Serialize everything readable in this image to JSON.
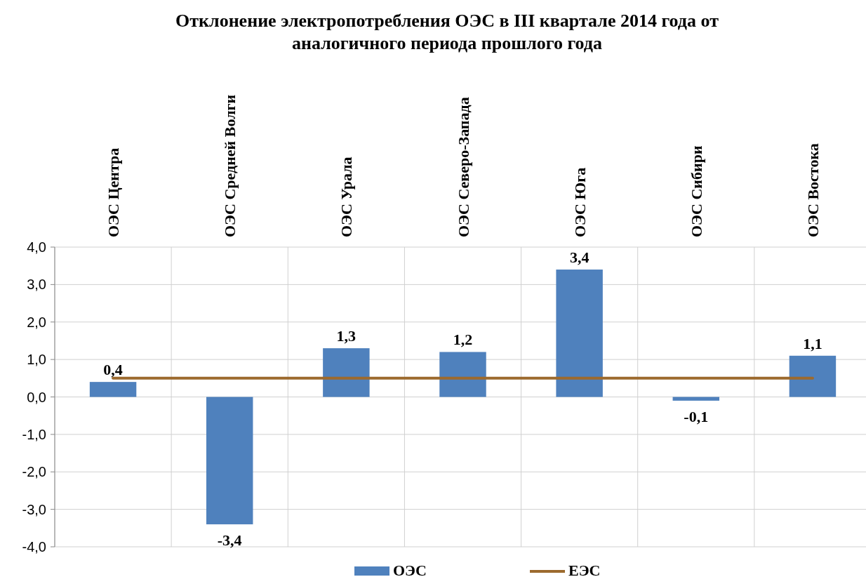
{
  "chart_data": {
    "type": "bar",
    "title": "Отклонение электропотребления ОЭС  в III  квартале 2014 года от аналогичного периода прошлого года",
    "categories": [
      "ОЭС Центра",
      "ОЭС Средней Волги",
      "ОЭС Урала",
      "ОЭС Северо-Запада",
      "ОЭС Юга",
      "ОЭС Сибири",
      "ОЭС Востока"
    ],
    "series": [
      {
        "name": "ОЭС",
        "color": "#4f81bd",
        "values": [
          0.4,
          -3.4,
          1.3,
          1.2,
          3.4,
          -0.1,
          1.1
        ],
        "value_labels": [
          "0,4",
          "-3,4",
          "1,3",
          "1,2",
          "3,4",
          "-0,1",
          "1,1"
        ]
      },
      {
        "name": "ЕЭС",
        "type": "line",
        "color": "#9c6a2e",
        "values": [
          0.5,
          0.5,
          0.5,
          0.5,
          0.5,
          0.5,
          0.5
        ]
      }
    ],
    "ylim": [
      -4,
      4
    ],
    "yticks": [
      {
        "value": -4,
        "label": "-4,0"
      },
      {
        "value": -3,
        "label": "-3,0"
      },
      {
        "value": -2,
        "label": "-2,0"
      },
      {
        "value": -1,
        "label": "-1,0"
      },
      {
        "value": 0,
        "label": "0,0"
      },
      {
        "value": 1,
        "label": "1,0"
      },
      {
        "value": 2,
        "label": "2,0"
      },
      {
        "value": 3,
        "label": "3,0"
      },
      {
        "value": 4,
        "label": "4,0"
      }
    ],
    "grid": true,
    "legend": "bottom",
    "marker": "none",
    "line_style": "solid"
  }
}
